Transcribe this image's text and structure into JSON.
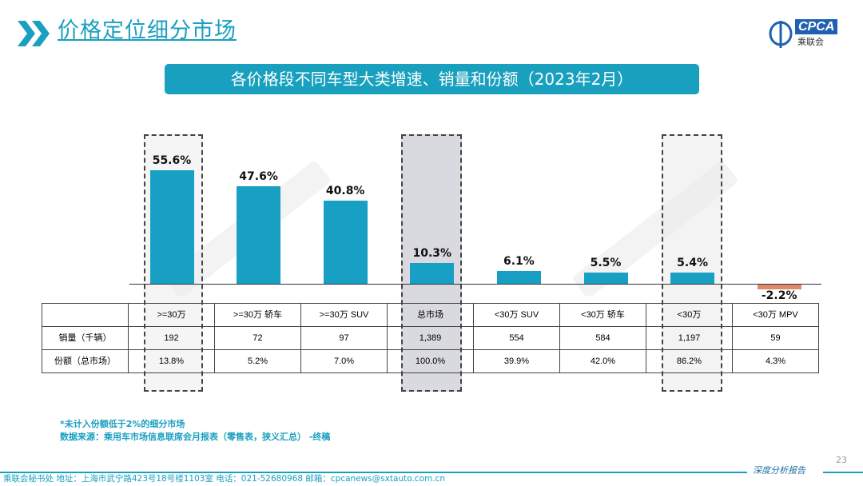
{
  "header": {
    "title": "价格定位细分市场",
    "logo_text": "CPCA",
    "logo_sub": "乘联会"
  },
  "banner": "各价格段不同车型大类增速、销量和份额（2023年2月）",
  "watermark": "CPCA乘联会",
  "chart_data": {
    "type": "bar",
    "categories": [
      ">=30万",
      ">=30万 轿车",
      ">=30万 SUV",
      "总市场",
      "<30万 SUV",
      "<30万 轿车",
      "<30万",
      "<30万 MPV"
    ],
    "values": [
      55.6,
      47.6,
      40.8,
      10.3,
      6.1,
      5.5,
      5.4,
      -2.2
    ],
    "data_labels": [
      "55.6%",
      "47.6%",
      "40.8%",
      "10.3%",
      "6.1%",
      "5.5%",
      "5.4%",
      "-2.2%"
    ],
    "colors": {
      "positive": "#17a0c4",
      "negative": "#e0896a"
    },
    "highlighted": [
      ">=30万",
      "总市场",
      "<30万"
    ],
    "table": {
      "rows": [
        {
          "label": "销量（千辆）",
          "values": [
            "192",
            "72",
            "97",
            "1,389",
            "554",
            "584",
            "1,197",
            "59"
          ]
        },
        {
          "label": "份额（总市场）",
          "values": [
            "13.8%",
            "5.2%",
            "7.0%",
            "100.0%",
            "39.9%",
            "42.0%",
            "86.2%",
            "4.3%"
          ]
        }
      ]
    }
  },
  "footnotes": [
    "*未计入份额低于2%的细分市场",
    "数据来源：乘用车市场信息联席会月报表（零售表，狭义汇总）  -终稿"
  ],
  "footer": {
    "address": "乘联会秘书处   地址：上海市武宁路423号18号楼1103室   电话：021-52680968   邮箱：cpcanews@sxtauto.com.cn",
    "tagline": "深度分析报告",
    "page": "23"
  }
}
